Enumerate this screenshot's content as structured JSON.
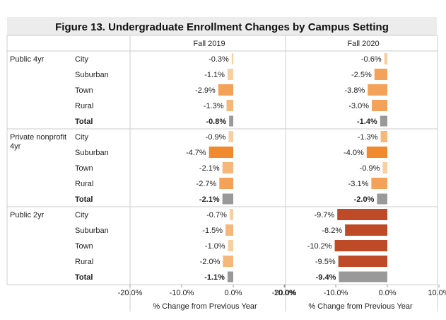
{
  "chart_data": {
    "type": "bar",
    "orientation": "horizontal",
    "title": "Figure 13. Undergraduate Enrollment Changes by Campus Setting",
    "panels": [
      "Fall 2019",
      "Fall 2020"
    ],
    "xlabel": "% Change from Previous Year",
    "xlim": [
      -20,
      10
    ],
    "x_ticks": [
      "-20.0%",
      "-10.0%",
      "0.0%",
      "10.0%"
    ],
    "x_tick_values": [
      -20,
      -10,
      0,
      10
    ],
    "groups": [
      {
        "name": "Public 4yr",
        "rows": [
          {
            "setting": "City",
            "values": [
              -0.3,
              -0.6
            ],
            "labels": [
              "-0.3%",
              "-0.6%"
            ]
          },
          {
            "setting": "Suburban",
            "values": [
              -1.1,
              -2.5
            ],
            "labels": [
              "-1.1%",
              "-2.5%"
            ]
          },
          {
            "setting": "Town",
            "values": [
              -2.9,
              -3.8
            ],
            "labels": [
              "-2.9%",
              "-3.8%"
            ]
          },
          {
            "setting": "Rural",
            "values": [
              -1.3,
              -3.0
            ],
            "labels": [
              "-1.3%",
              "-3.0%"
            ]
          },
          {
            "setting": "Total",
            "total": true,
            "values": [
              -0.8,
              -1.4
            ],
            "labels": [
              "-0.8%",
              "-1.4%"
            ]
          }
        ]
      },
      {
        "name": "Private nonprofit 4yr",
        "rows": [
          {
            "setting": "City",
            "values": [
              -0.9,
              -1.3
            ],
            "labels": [
              "-0.9%",
              "-1.3%"
            ]
          },
          {
            "setting": "Suburban",
            "values": [
              -4.7,
              -4.0
            ],
            "labels": [
              "-4.7%",
              "-4.0%"
            ]
          },
          {
            "setting": "Town",
            "values": [
              -2.1,
              -0.9
            ],
            "labels": [
              "-2.1%",
              "-0.9%"
            ]
          },
          {
            "setting": "Rural",
            "values": [
              -2.7,
              -3.1
            ],
            "labels": [
              "-2.7%",
              "-3.1%"
            ]
          },
          {
            "setting": "Total",
            "total": true,
            "values": [
              -2.1,
              -2.0
            ],
            "labels": [
              "-2.1%",
              "-2.0%"
            ]
          }
        ]
      },
      {
        "name": "Public 2yr",
        "rows": [
          {
            "setting": "City",
            "values": [
              -0.7,
              -9.7
            ],
            "labels": [
              "-0.7%",
              "-9.7%"
            ]
          },
          {
            "setting": "Suburban",
            "values": [
              -1.5,
              -8.2
            ],
            "labels": [
              "-1.5%",
              "-8.2%"
            ]
          },
          {
            "setting": "Town",
            "values": [
              -1.0,
              -10.2
            ],
            "labels": [
              "-1.0%",
              "-10.2%"
            ]
          },
          {
            "setting": "Rural",
            "values": [
              -2.0,
              -9.5
            ],
            "labels": [
              "-2.0%",
              "-9.5%"
            ]
          },
          {
            "setting": "Total",
            "total": true,
            "values": [
              -1.1,
              -9.4
            ],
            "labels": [
              "-1.1%",
              "-9.4%"
            ]
          }
        ]
      }
    ],
    "colors": {
      "total_bar": "#999999",
      "light": "#f8cfa0",
      "light_mid": "#f6b87a",
      "mid": "#f4a25a",
      "strong": "#f08a2e",
      "deep": "#bf4a28",
      "gridline": "#cccccc",
      "title_band": "#ececec",
      "text": "#222222"
    },
    "grid": "row-separators"
  }
}
